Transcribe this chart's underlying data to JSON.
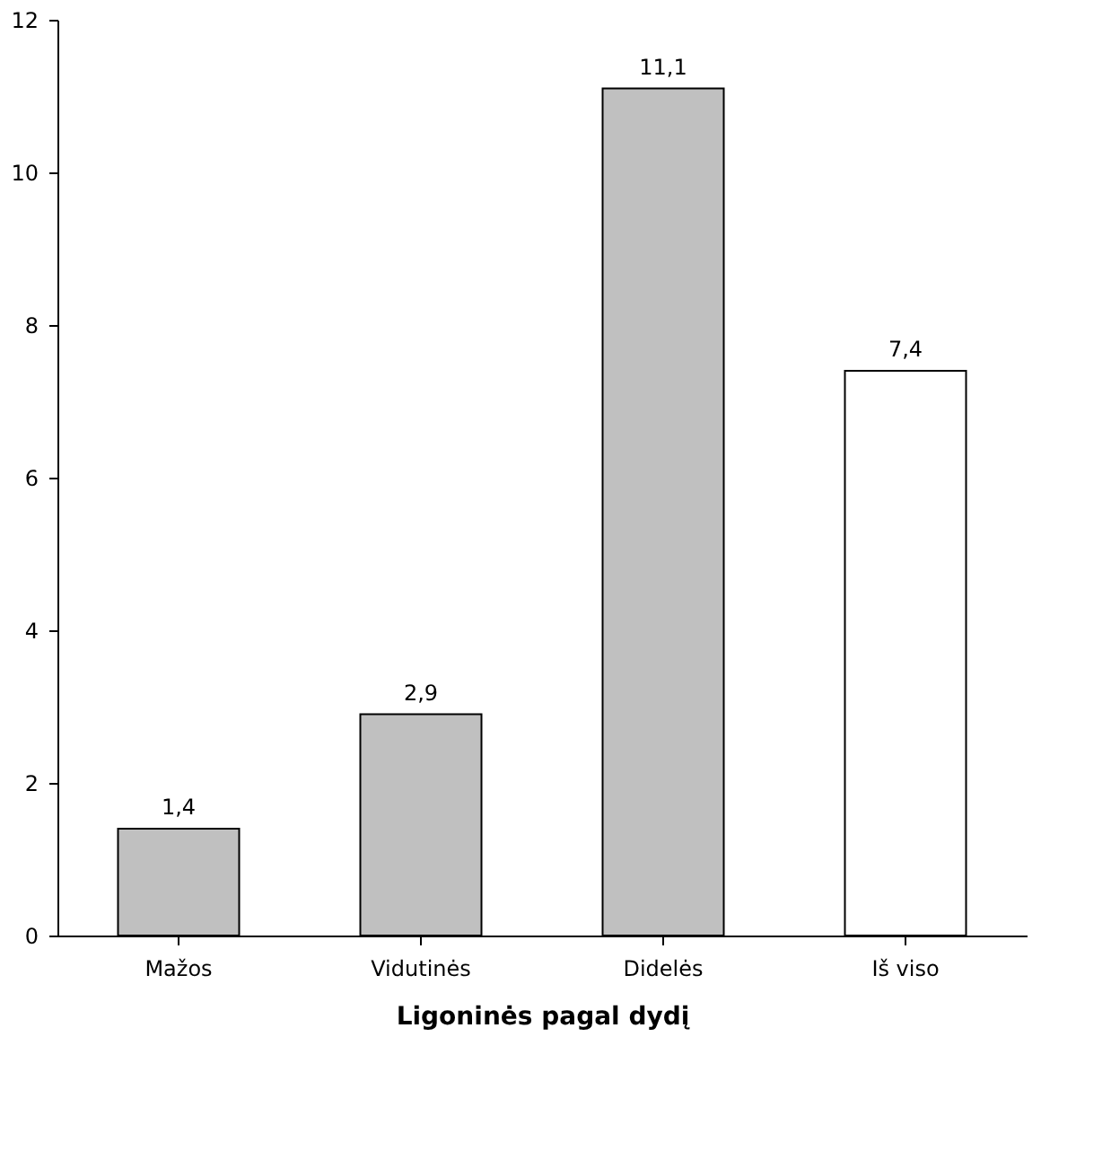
{
  "chart_data": {
    "type": "bar",
    "xlabel": "Ligoninės pagal dydį",
    "categories": [
      "Mažos",
      "Vidutinės",
      "Didelės",
      "Iš viso"
    ],
    "values": [
      1.4,
      2.9,
      11.1,
      7.4
    ],
    "value_labels": [
      "1,4",
      "2,9",
      "11,1",
      "7,4"
    ],
    "colors": [
      "#c0c0c0",
      "#c0c0c0",
      "#c0c0c0",
      "#ffffff"
    ],
    "ylim": [
      0,
      12
    ],
    "yticks": [
      0,
      2,
      4,
      6,
      8,
      10,
      12
    ],
    "grid": false,
    "legend": false
  }
}
